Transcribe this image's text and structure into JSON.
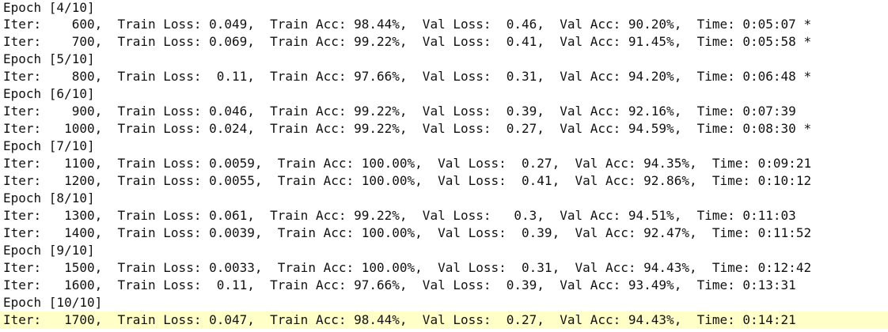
{
  "console": {
    "lines": [
      "Epoch [4/10]",
      "Iter:    600,  Train Loss: 0.049,  Train Acc: 98.44%,  Val Loss:  0.46,  Val Acc: 90.20%,  Time: 0:05:07 *",
      "Iter:    700,  Train Loss: 0.069,  Train Acc: 99.22%,  Val Loss:  0.41,  Val Acc: 91.45%,  Time: 0:05:58 *",
      "Epoch [5/10]",
      "Iter:    800,  Train Loss:  0.11,  Train Acc: 97.66%,  Val Loss:  0.31,  Val Acc: 94.20%,  Time: 0:06:48 *",
      "Epoch [6/10]",
      "Iter:    900,  Train Loss: 0.046,  Train Acc: 99.22%,  Val Loss:  0.39,  Val Acc: 92.16%,  Time: 0:07:39",
      "Iter:   1000,  Train Loss: 0.024,  Train Acc: 99.22%,  Val Loss:  0.27,  Val Acc: 94.59%,  Time: 0:08:30 *",
      "Epoch [7/10]",
      "Iter:   1100,  Train Loss: 0.0059,  Train Acc: 100.00%,  Val Loss:  0.27,  Val Acc: 94.35%,  Time: 0:09:21",
      "Iter:   1200,  Train Loss: 0.0055,  Train Acc: 100.00%,  Val Loss:  0.41,  Val Acc: 92.86%,  Time: 0:10:12",
      "Epoch [8/10]",
      "Iter:   1300,  Train Loss: 0.061,  Train Acc: 99.22%,  Val Loss:   0.3,  Val Acc: 94.51%,  Time: 0:11:03",
      "Iter:   1400,  Train Loss: 0.0039,  Train Acc: 100.00%,  Val Loss:  0.39,  Val Acc: 92.47%,  Time: 0:11:52",
      "Epoch [9/10]",
      "Iter:   1500,  Train Loss: 0.0033,  Train Acc: 100.00%,  Val Loss:  0.31,  Val Acc: 94.43%,  Time: 0:12:42",
      "Iter:   1600,  Train Loss:  0.11,  Train Acc: 97.66%,  Val Loss:  0.39,  Val Acc: 93.49%,  Time: 0:13:31",
      "Epoch [10/10]",
      "Iter:   1700,  Train Loss: 0.047,  Train Acc: 98.44%,  Val Loss:  0.27,  Val Acc: 94.43%,  Time: 0:14:21"
    ],
    "highlight_color": "#ffffc8",
    "text_color": "#111111"
  }
}
